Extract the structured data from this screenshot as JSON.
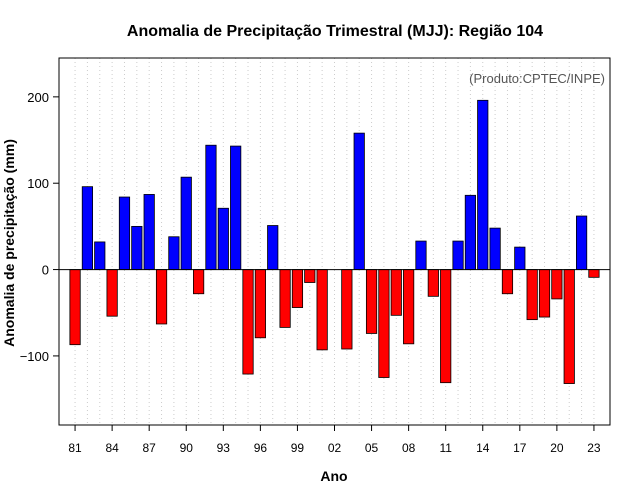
{
  "chart_data": {
    "type": "bar",
    "title": "Anomalia de Precipitação Trimestral (MJJ): Região 104",
    "xlabel": "Ano",
    "ylabel": "Anomalia de precipitação (mm)",
    "credit": "(Produto:CPTEC/INPE)",
    "ylim": [
      -180,
      245
    ],
    "xlim": [
      1979.7,
      2024.3
    ],
    "yticks": [
      -100,
      0,
      100,
      200
    ],
    "ytick_labels": [
      "−100",
      "0",
      "100",
      "200"
    ],
    "xticks": [
      1981,
      1984,
      1987,
      1990,
      1993,
      1996,
      1999,
      2002,
      2005,
      2008,
      2011,
      2014,
      2017,
      2020,
      2023
    ],
    "xtick_labels": [
      "81",
      "84",
      "87",
      "90",
      "93",
      "96",
      "99",
      "02",
      "05",
      "08",
      "11",
      "14",
      "17",
      "20",
      "23"
    ],
    "colors": {
      "positive": "#0000ff",
      "negative": "#ff0000",
      "outline": "#000000",
      "grid": "#cccccc",
      "credit": "#555555"
    },
    "years": [
      1981,
      1982,
      1983,
      1984,
      1985,
      1986,
      1987,
      1988,
      1989,
      1990,
      1991,
      1992,
      1993,
      1994,
      1995,
      1996,
      1997,
      1998,
      1999,
      2000,
      2001,
      2002,
      2003,
      2004,
      2005,
      2006,
      2007,
      2008,
      2009,
      2010,
      2011,
      2012,
      2013,
      2014,
      2015,
      2016,
      2017,
      2018,
      2019,
      2020,
      2021,
      2022,
      2023
    ],
    "values": [
      -87,
      96,
      32,
      -54,
      84,
      50,
      87,
      -63,
      38,
      107,
      -28,
      144,
      71,
      143,
      -121,
      -79,
      51,
      -67,
      -44,
      -15,
      -93,
      0,
      -92,
      158,
      -74,
      -125,
      -53,
      -86,
      33,
      -31,
      -131,
      33,
      86,
      196,
      48,
      -28,
      26,
      -58,
      -55,
      -34,
      -132,
      62,
      -9
    ]
  }
}
